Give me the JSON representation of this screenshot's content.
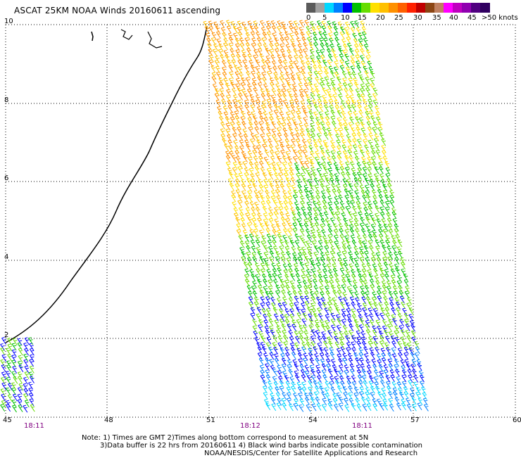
{
  "title": "ASCAT 25KM NOAA Winds 20160611 ascending",
  "legend": {
    "labels": [
      "0",
      "5",
      "10",
      "15",
      "20",
      "25",
      "30",
      "35",
      "40",
      "45",
      ">50 knots"
    ],
    "colors": [
      "#5a5a5a",
      "#a0a0a0",
      "#00d8ff",
      "#0080ff",
      "#0000ff",
      "#00c000",
      "#66dd00",
      "#ffe000",
      "#ffc000",
      "#ff9000",
      "#ff6000",
      "#ff2000",
      "#c00000",
      "#8b4513",
      "#c08060",
      "#ff00ff",
      "#c000c0",
      "#9000b0",
      "#500080",
      "#300060"
    ]
  },
  "axes": {
    "y_ticks": [
      "10",
      "8",
      "6",
      "4",
      "2"
    ],
    "x_ticks": [
      "45",
      "48",
      "51",
      "54",
      "57",
      "60"
    ],
    "y_range": [
      0,
      10
    ],
    "x_range": [
      45,
      60
    ],
    "grid": true
  },
  "times": [
    "18:11",
    "18:12",
    "18:11"
  ],
  "notes": [
    "Note: 1) Times are GMT 2)Times along bottom correspond to measurement at 5N",
    "3)Data buffer is 22 hrs from 20160611 4) Black wind barbs indicate possible contamination",
    "NOAA/NESDIS/Center for Satellite Applications and Research"
  ]
}
